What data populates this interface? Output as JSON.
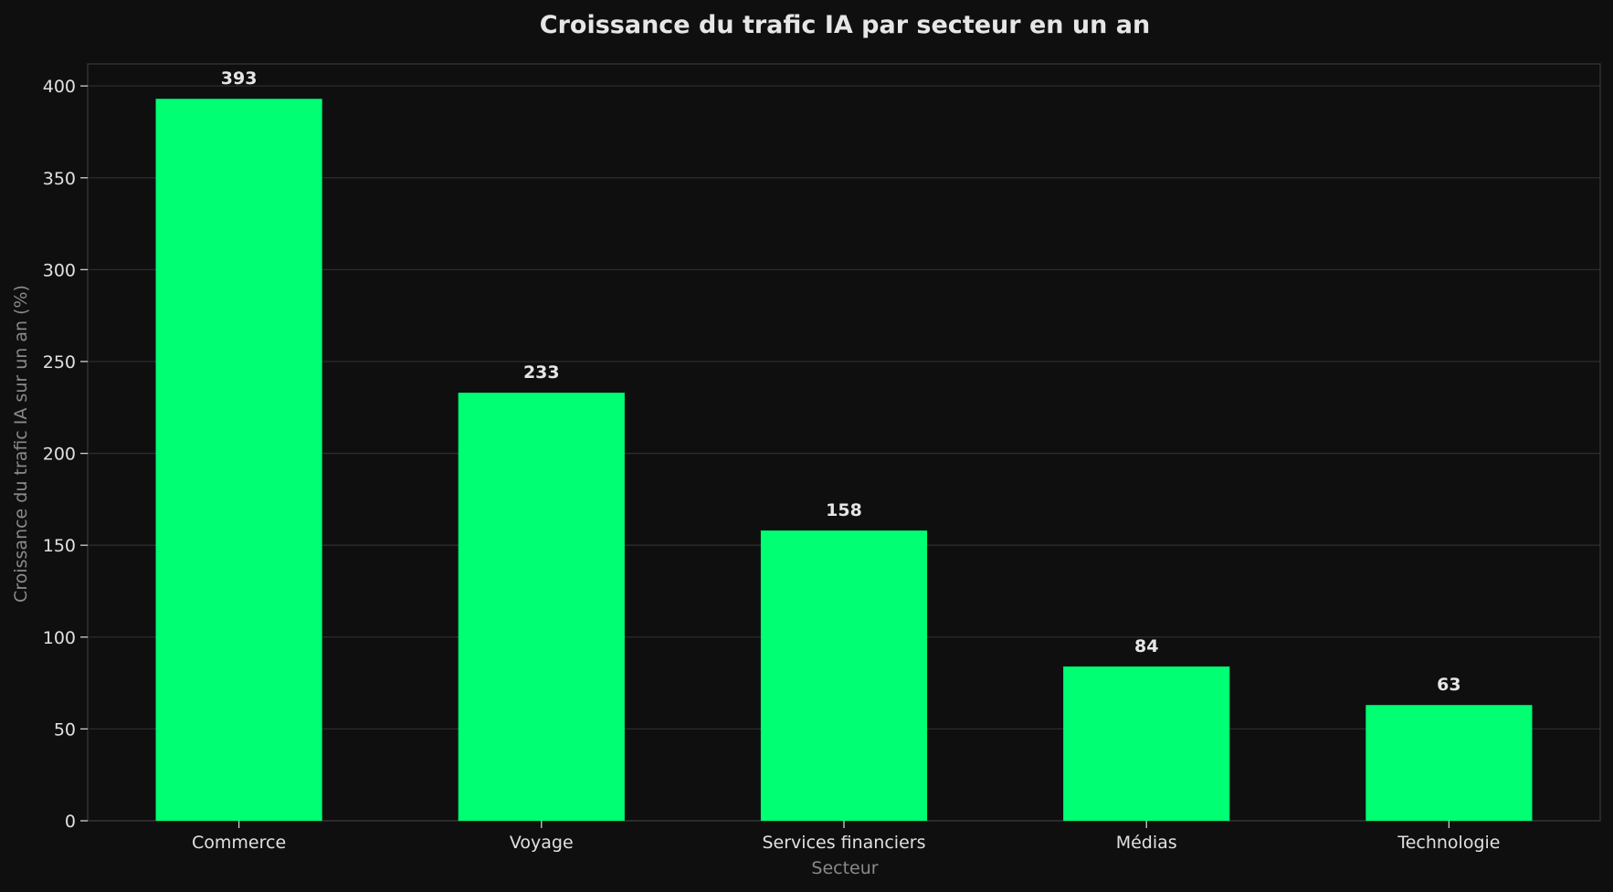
{
  "chart_data": {
    "type": "bar",
    "title": "Croissance du trafic IA par secteur en un an",
    "xlabel": "Secteur",
    "ylabel": "Croissance du trafic IA sur un an (%)",
    "categories": [
      "Commerce",
      "Voyage",
      "Services financiers",
      "Médias",
      "Technologie"
    ],
    "values": [
      393,
      233,
      158,
      84,
      63
    ],
    "value_labels": [
      "393",
      "233",
      "158",
      "84",
      "63"
    ],
    "ylim": [
      0,
      412
    ],
    "yticks": [
      0,
      50,
      100,
      150,
      200,
      250,
      300,
      350,
      400
    ],
    "grid": true,
    "legend": "none",
    "colors": {
      "background": "#0f0f0f",
      "bar": "#00ff73",
      "grid": "#2c2c2c",
      "axis": "#3a3a3a",
      "text": "#e0e0e0",
      "axis_label": "#8a8a8a"
    }
  }
}
